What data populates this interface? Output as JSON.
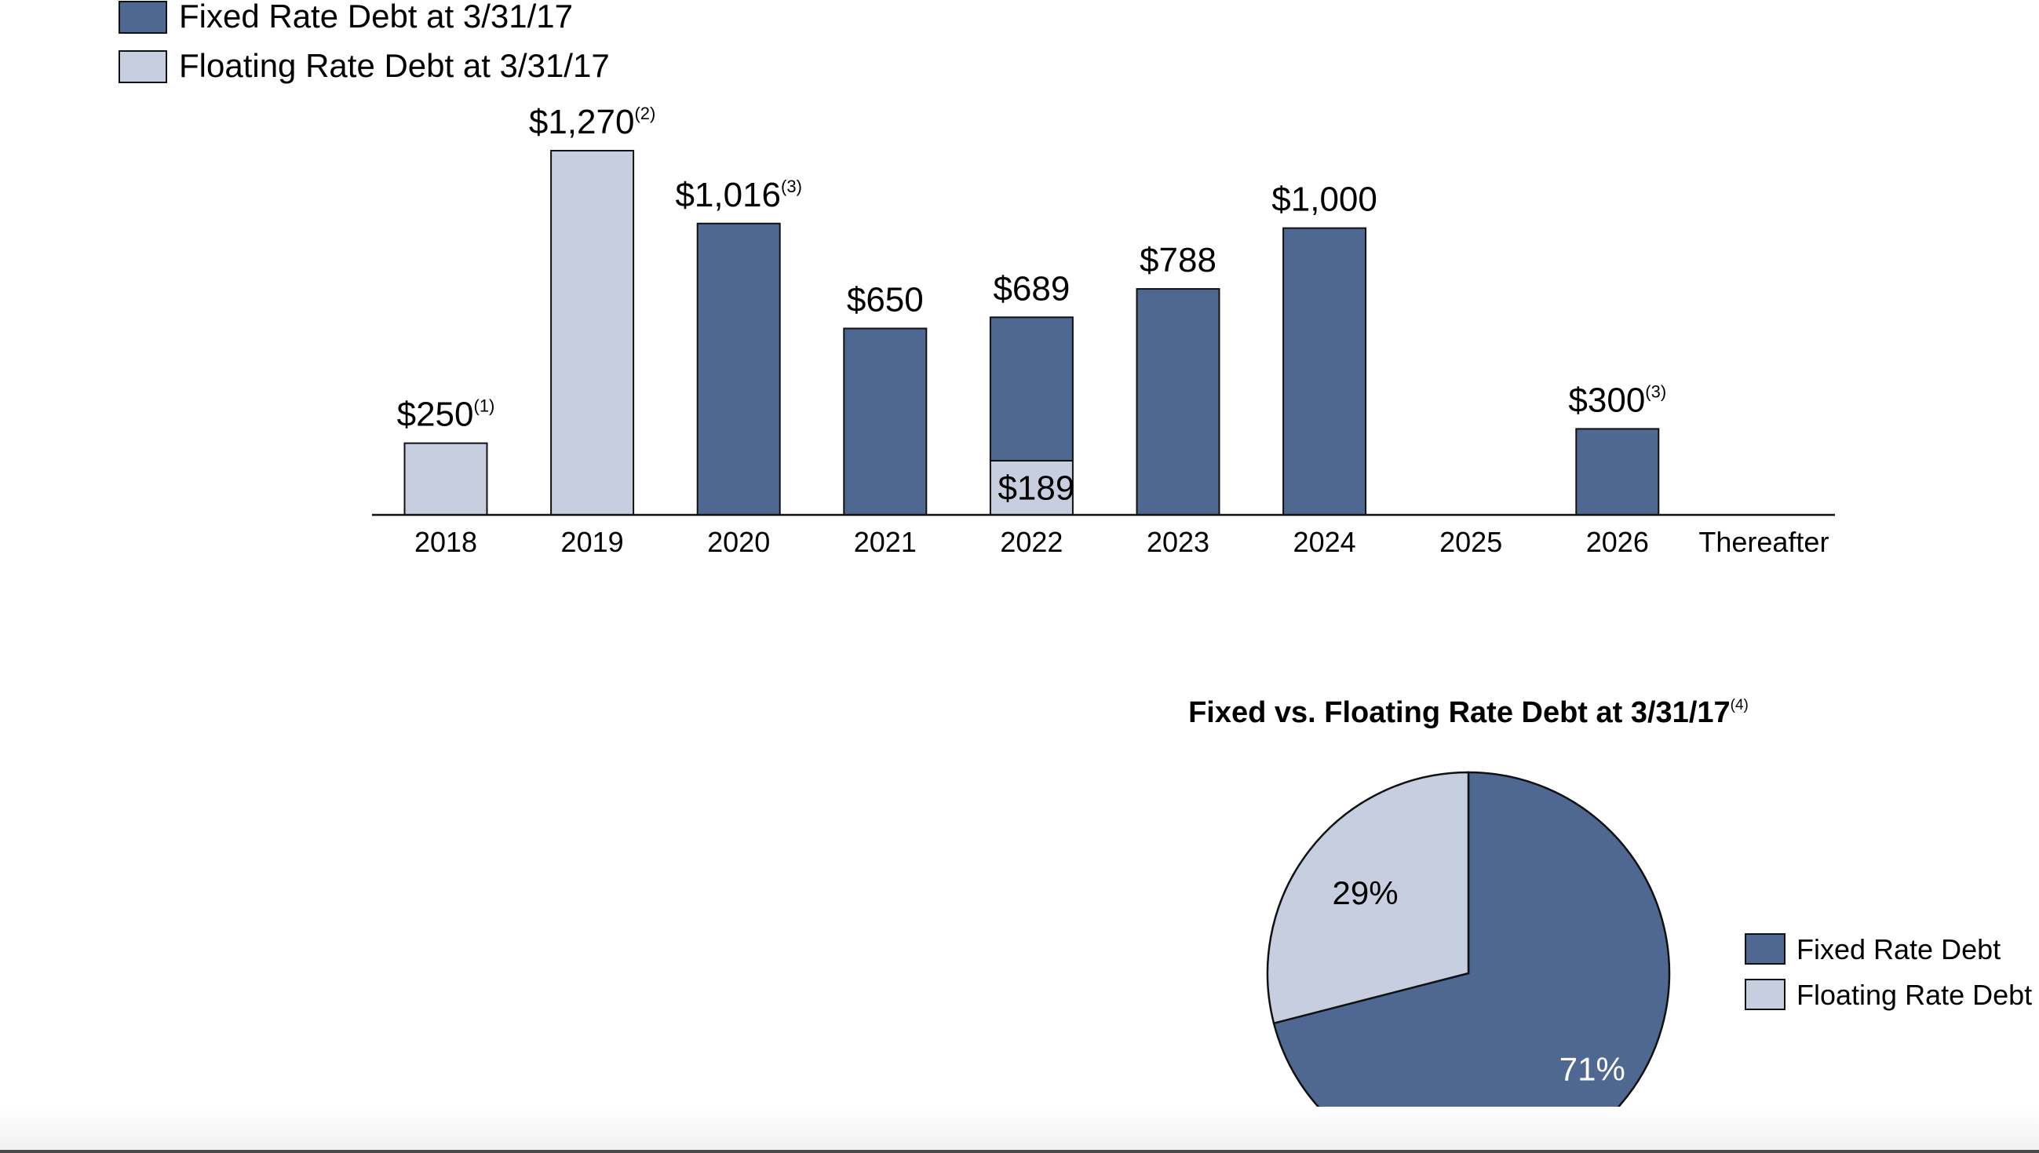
{
  "colors": {
    "fixed": "#4f6891",
    "floating": "#c6cedf",
    "stroke": "#111111",
    "text": "#000000"
  },
  "legend_top": {
    "items": [
      {
        "label": "Fixed Rate Debt at 3/31/17",
        "color_key": "fixed"
      },
      {
        "label": "Floating Rate Debt at 3/31/17",
        "color_key": "floating"
      }
    ]
  },
  "pie_legend": {
    "items": [
      {
        "label": "Fixed Rate Debt",
        "color_key": "fixed"
      },
      {
        "label": "Floating Rate Debt",
        "color_key": "floating"
      }
    ]
  },
  "chart_data": [
    {
      "type": "bar",
      "stacked": true,
      "categories": [
        "2018",
        "2019",
        "2020",
        "2021",
        "2022",
        "2023",
        "2024",
        "2025",
        "2026",
        "Thereafter"
      ],
      "series": [
        {
          "name": "Fixed Rate Debt at 3/31/17",
          "values": [
            0,
            0,
            1016,
            650,
            500,
            788,
            1000,
            0,
            300,
            0
          ]
        },
        {
          "name": "Floating Rate Debt at 3/31/17",
          "values": [
            250,
            1270,
            0,
            0,
            189,
            0,
            0,
            0,
            0,
            0
          ]
        }
      ],
      "total_labels": [
        {
          "index": 0,
          "text": "$250",
          "note": "(1)"
        },
        {
          "index": 1,
          "text": "$1,270",
          "note": "(2)"
        },
        {
          "index": 2,
          "text": "$1,016",
          "note": "(3)"
        },
        {
          "index": 3,
          "text": "$650",
          "note": ""
        },
        {
          "index": 4,
          "text": "$689",
          "note": ""
        },
        {
          "index": 5,
          "text": "$788",
          "note": ""
        },
        {
          "index": 6,
          "text": "$1,000",
          "note": ""
        },
        {
          "index": 8,
          "text": "$300",
          "note": "(3)"
        }
      ],
      "segment_labels": [
        {
          "index": 4,
          "series": 1,
          "text": "$189"
        }
      ],
      "ylim": [
        0,
        1300
      ],
      "grid": false,
      "legend": "top-left",
      "title": "",
      "xlabel": "",
      "ylabel": ""
    },
    {
      "type": "pie",
      "title": "Fixed vs. Floating Rate Debt at 3/31/17",
      "title_note": "(4)",
      "slices": [
        {
          "label": "Fixed Rate Debt",
          "value": 71,
          "text": "71%",
          "color_key": "fixed"
        },
        {
          "label": "Floating Rate Debt",
          "value": 29,
          "text": "29%",
          "color_key": "floating"
        }
      ],
      "legend": "right"
    }
  ]
}
